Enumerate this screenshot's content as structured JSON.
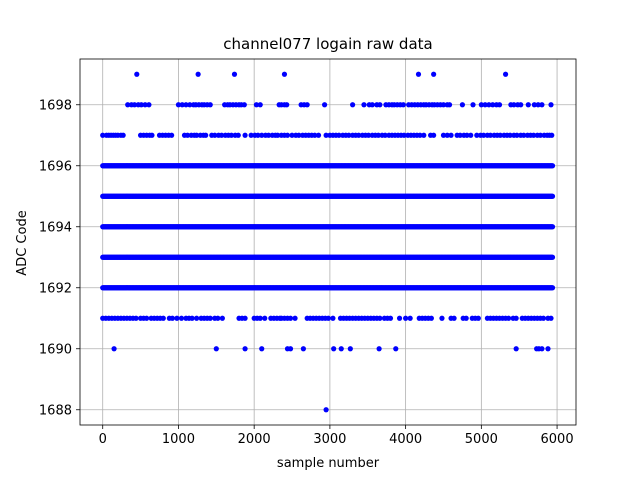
{
  "chart_data": {
    "type": "scatter",
    "title": "channel077 logain raw data",
    "xlabel": "sample number",
    "ylabel": "ADC Code",
    "xlim": [
      -300,
      6250
    ],
    "ylim": [
      1687.5,
      1699.5
    ],
    "x_ticks": [
      0,
      1000,
      2000,
      3000,
      4000,
      5000,
      6000
    ],
    "y_ticks": [
      1688,
      1690,
      1692,
      1694,
      1696,
      1698
    ],
    "x_tick_labels": [
      "0",
      "1000",
      "2000",
      "3000",
      "4000",
      "5000",
      "6000"
    ],
    "y_tick_labels": [
      "1688",
      "1690",
      "1692",
      "1694",
      "1696",
      "1698"
    ],
    "grid": true,
    "marker_color": "#0000ff",
    "series": [
      {
        "points": [
          {
            "y": 1699,
            "x": [
              450,
              1260,
              1740,
              2400,
              4170,
              4370,
              5320
            ]
          },
          {
            "y": 1698,
            "x": [
              330,
              380,
              420,
              470,
              510,
              560,
              610,
              1000,
              1050,
              1100,
              1150,
              1200,
              1230,
              1270,
              1310,
              1340,
              1380,
              1420,
              1610,
              1650,
              1680,
              1720,
              1760,
              1800,
              1830,
              1870,
              2030,
              2080,
              2330,
              2360,
              2400,
              2430,
              2620,
              2660,
              2700,
              2930,
              3300,
              3450,
              3520,
              3560,
              3620,
              3660,
              3740,
              3780,
              3820,
              3850,
              3890,
              3930,
              3970,
              4040,
              4080,
              4120,
              4160,
              4200,
              4240,
              4270,
              4310,
              4350,
              4380,
              4420,
              4460,
              4500,
              4550,
              4580,
              4750,
              4890,
              5000,
              5050,
              5100,
              5150,
              5200,
              5240,
              5390,
              5430,
              5480,
              5520,
              5620,
              5700,
              5750,
              5800,
              5920
            ]
          },
          {
            "y": 1697,
            "x": [
              0,
              50,
              80,
              110,
              140,
              170,
              200,
              240,
              270,
              500,
              540,
              580,
              620,
              650,
              750,
              790,
              830,
              870,
              910,
              1080,
              1120,
              1170,
              1210,
              1240,
              1290,
              1330,
              1360,
              1440,
              1480,
              1530,
              1570,
              1620,
              1660,
              1700,
              1750,
              1790,
              1880,
              1960,
              2010,
              2050,
              2100,
              2150,
              2190,
              2240,
              2280,
              2310,
              2360,
              2400,
              2440,
              2500,
              2550,
              2590,
              2640,
              2680,
              2720,
              2760,
              2800,
              2850,
              2950,
              3000,
              3040,
              3080,
              3120,
              3170,
              3210,
              3250,
              3300,
              3340,
              3380,
              3430,
              3470,
              3510,
              3560,
              3600,
              3640,
              3690,
              3730,
              3780,
              3820,
              3860,
              3900,
              3940,
              3980,
              4030,
              4070,
              4110,
              4150,
              4190,
              4240,
              4330,
              4370,
              4500,
              4550,
              4600,
              4680,
              4720,
              4770,
              4810,
              4860,
              4940,
              4990,
              5030,
              5080,
              5120,
              5170,
              5210,
              5250,
              5300,
              5340,
              5380,
              5430,
              5470,
              5520,
              5560,
              5610,
              5650,
              5690,
              5740,
              5780,
              5830,
              5870,
              5900,
              5930
            ]
          },
          {
            "y": 1696,
            "range": [
              0,
              5940
            ]
          },
          {
            "y": 1695,
            "range": [
              0,
              5940
            ]
          },
          {
            "y": 1694,
            "range": [
              0,
              5940
            ]
          },
          {
            "y": 1693,
            "range": [
              0,
              5940
            ]
          },
          {
            "y": 1692,
            "range": [
              0,
              5940
            ]
          },
          {
            "y": 1691,
            "x": [
              0,
              40,
              80,
              120,
              160,
              200,
              240,
              280,
              320,
              360,
              400,
              440,
              500,
              540,
              580,
              640,
              680,
              720,
              760,
              800,
              880,
              920,
              980,
              1040,
              1100,
              1140,
              1180,
              1240,
              1300,
              1340,
              1380,
              1420,
              1480,
              1520,
              1580,
              1800,
              1840,
              1880,
              2000,
              2040,
              2080,
              2140,
              2220,
              2260,
              2300,
              2340,
              2360,
              2400,
              2440,
              2480,
              2540,
              2700,
              2740,
              2780,
              2820,
              2860,
              2900,
              2940,
              2980,
              3040,
              3140,
              3180,
              3220,
              3260,
              3300,
              3340,
              3380,
              3420,
              3460,
              3500,
              3540,
              3580,
              3620,
              3660,
              3720,
              3760,
              3800,
              3920,
              4000,
              4060,
              4180,
              4220,
              4260,
              4300,
              4340,
              4480,
              4600,
              4640,
              4760,
              4800,
              4880,
              4920,
              4960,
              5080,
              5120,
              5160,
              5200,
              5240,
              5280,
              5320,
              5360,
              5420,
              5460,
              5540,
              5580,
              5620,
              5660,
              5700,
              5740,
              5780,
              5820,
              5880,
              5920
            ]
          },
          {
            "y": 1690,
            "x": [
              150,
              1500,
              1880,
              2100,
              2440,
              2480,
              2650,
              3050,
              3150,
              3270,
              3650,
              3870,
              5460,
              5730,
              5760,
              5800,
              5880
            ]
          },
          {
            "y": 1688,
            "x": [
              2950
            ]
          }
        ]
      }
    ]
  }
}
